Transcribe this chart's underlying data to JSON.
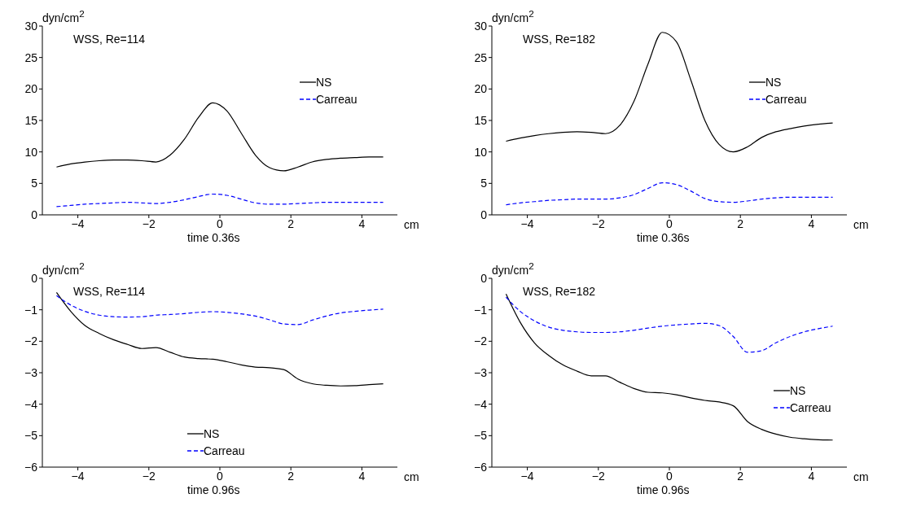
{
  "chart_data": [
    {
      "type": "line",
      "ylabel": "dyn/cm$^{2}$",
      "xlabel": "cm",
      "annotations": [
        "WSS, Re=114",
        "time 0.36s"
      ],
      "xlim": [
        -5,
        5
      ],
      "xticks": [
        -4,
        -2,
        0,
        2,
        4
      ],
      "ylim": [
        0,
        30
      ],
      "yticks": [
        0,
        5,
        10,
        15,
        20,
        25,
        30
      ],
      "grid": false,
      "legend": "right",
      "x": [
        -4.6,
        -4.2,
        -3.8,
        -3.4,
        -3.0,
        -2.6,
        -2.2,
        -1.8,
        -1.4,
        -1.0,
        -0.6,
        -0.2,
        0.2,
        0.6,
        1.0,
        1.4,
        1.8,
        2.2,
        2.6,
        3.0,
        3.4,
        3.8,
        4.2,
        4.6
      ],
      "series": [
        {
          "name": "NS",
          "color": "#000000",
          "line_style": "solid",
          "values": [
            7.6,
            8.1,
            8.4,
            8.6,
            8.7,
            8.7,
            8.6,
            8.4,
            9.5,
            12,
            15.5,
            17.8,
            16.5,
            13,
            9.5,
            7.5,
            7.0,
            7.6,
            8.4,
            8.8,
            9.0,
            9.1,
            9.2,
            9.2
          ]
        },
        {
          "name": "Carreau",
          "color": "#0000ff",
          "line_style": "dashed",
          "values": [
            1.3,
            1.5,
            1.7,
            1.8,
            1.9,
            2.0,
            1.9,
            1.8,
            2.0,
            2.4,
            2.9,
            3.3,
            3.1,
            2.5,
            1.9,
            1.7,
            1.7,
            1.8,
            1.9,
            2.0,
            2.0,
            2.0,
            2.0,
            2.0
          ]
        }
      ]
    },
    {
      "type": "line",
      "ylabel": "dyn/cm$^{2}$",
      "xlabel": "cm",
      "annotations": [
        "WSS, Re=182",
        "time 0.36s"
      ],
      "xlim": [
        -5,
        5
      ],
      "xticks": [
        -4,
        -2,
        0,
        2,
        4
      ],
      "ylim": [
        0,
        30
      ],
      "yticks": [
        0,
        5,
        10,
        15,
        20,
        25,
        30
      ],
      "grid": false,
      "legend": "right",
      "x": [
        -4.6,
        -4.2,
        -3.8,
        -3.4,
        -3.0,
        -2.6,
        -2.2,
        -1.8,
        -1.4,
        -1.0,
        -0.6,
        -0.2,
        0.2,
        0.6,
        1.0,
        1.4,
        1.8,
        2.2,
        2.6,
        3.0,
        3.4,
        3.8,
        4.2,
        4.6
      ],
      "series": [
        {
          "name": "NS",
          "color": "#000000",
          "line_style": "solid",
          "values": [
            11.7,
            12.2,
            12.6,
            12.9,
            13.1,
            13.2,
            13.1,
            12.9,
            14.2,
            18,
            24,
            29,
            27.5,
            21.5,
            15,
            11.2,
            10.0,
            10.8,
            12.3,
            13.2,
            13.7,
            14.1,
            14.4,
            14.6
          ]
        },
        {
          "name": "Carreau",
          "color": "#0000ff",
          "line_style": "dashed",
          "values": [
            1.6,
            1.9,
            2.1,
            2.3,
            2.4,
            2.5,
            2.5,
            2.5,
            2.7,
            3.2,
            4.2,
            5.1,
            4.8,
            3.8,
            2.6,
            2.1,
            2.0,
            2.2,
            2.5,
            2.7,
            2.8,
            2.8,
            2.8,
            2.8
          ]
        }
      ]
    },
    {
      "type": "line",
      "ylabel": "dyn/cm$^{2}$",
      "xlabel": "cm",
      "annotations": [
        "WSS, Re=114",
        "time 0.96s"
      ],
      "xlim": [
        -5,
        5
      ],
      "xticks": [
        -4,
        -2,
        0,
        2,
        4
      ],
      "ylim": [
        -6,
        0
      ],
      "yticks": [
        -6,
        -5,
        -4,
        -3,
        -2,
        -1,
        0
      ],
      "grid": false,
      "legend": "bottom",
      "x": [
        -4.6,
        -4.2,
        -3.8,
        -3.4,
        -3.0,
        -2.6,
        -2.2,
        -1.8,
        -1.4,
        -1.0,
        -0.6,
        -0.2,
        0.2,
        0.6,
        1.0,
        1.4,
        1.8,
        2.2,
        2.6,
        3.0,
        3.4,
        3.8,
        4.2,
        4.6
      ],
      "series": [
        {
          "name": "NS",
          "color": "#000000",
          "line_style": "solid",
          "values": [
            -0.45,
            -1.05,
            -1.5,
            -1.75,
            -1.95,
            -2.1,
            -2.23,
            -2.2,
            -2.35,
            -2.5,
            -2.55,
            -2.57,
            -2.65,
            -2.75,
            -2.82,
            -2.84,
            -2.9,
            -3.2,
            -3.35,
            -3.4,
            -3.42,
            -3.41,
            -3.38,
            -3.35
          ]
        },
        {
          "name": "Carreau",
          "color": "#0000ff",
          "line_style": "dashed",
          "values": [
            -0.55,
            -0.85,
            -1.05,
            -1.17,
            -1.22,
            -1.23,
            -1.22,
            -1.17,
            -1.15,
            -1.12,
            -1.08,
            -1.06,
            -1.08,
            -1.13,
            -1.2,
            -1.32,
            -1.45,
            -1.47,
            -1.33,
            -1.2,
            -1.1,
            -1.05,
            -1.01,
            -0.98
          ]
        }
      ]
    },
    {
      "type": "line",
      "ylabel": "dyn/cm$^{2}$",
      "xlabel": "cm",
      "annotations": [
        "WSS, Re=182",
        "time 0.96s"
      ],
      "xlim": [
        -5,
        5
      ],
      "xticks": [
        -4,
        -2,
        0,
        2,
        4
      ],
      "ylim": [
        -6,
        0
      ],
      "yticks": [
        -6,
        -5,
        -4,
        -3,
        -2,
        -1,
        0
      ],
      "grid": false,
      "legend": "bottom right",
      "x": [
        -4.6,
        -4.2,
        -3.8,
        -3.4,
        -3.0,
        -2.6,
        -2.2,
        -1.8,
        -1.4,
        -1.0,
        -0.6,
        -0.2,
        0.2,
        0.6,
        1.0,
        1.4,
        1.8,
        2.2,
        2.6,
        3.0,
        3.4,
        3.8,
        4.2,
        4.6
      ],
      "series": [
        {
          "name": "NS",
          "color": "#000000",
          "line_style": "solid",
          "values": [
            -0.5,
            -1.4,
            -2.05,
            -2.45,
            -2.75,
            -2.95,
            -3.1,
            -3.1,
            -3.3,
            -3.5,
            -3.62,
            -3.64,
            -3.7,
            -3.8,
            -3.88,
            -3.93,
            -4.05,
            -4.55,
            -4.8,
            -4.95,
            -5.05,
            -5.1,
            -5.13,
            -5.14
          ]
        },
        {
          "name": "Carreau",
          "color": "#0000ff",
          "line_style": "dashed",
          "values": [
            -0.6,
            -1.05,
            -1.35,
            -1.55,
            -1.65,
            -1.7,
            -1.72,
            -1.72,
            -1.7,
            -1.65,
            -1.58,
            -1.52,
            -1.48,
            -1.45,
            -1.43,
            -1.5,
            -1.85,
            -2.35,
            -2.3,
            -2.05,
            -1.85,
            -1.7,
            -1.6,
            -1.52
          ]
        }
      ]
    }
  ]
}
